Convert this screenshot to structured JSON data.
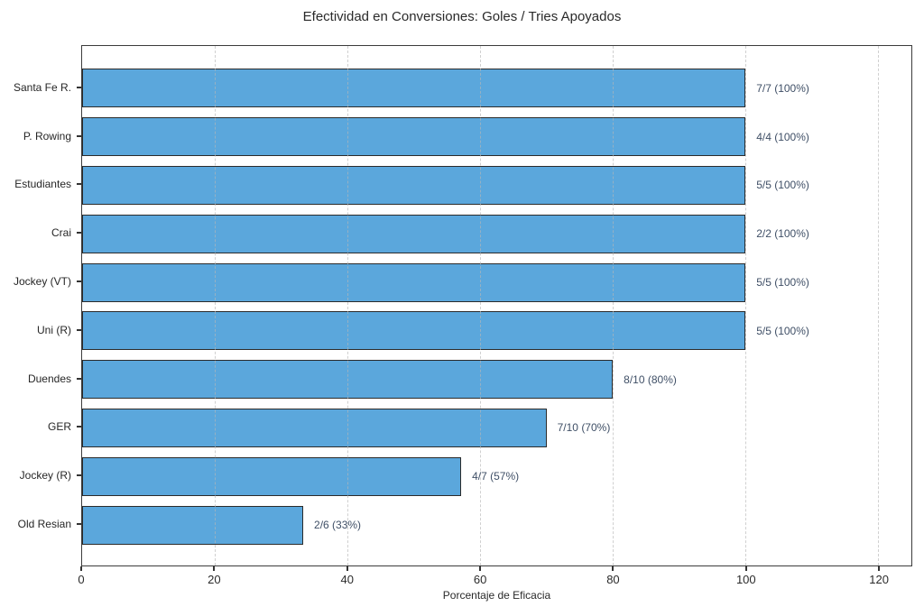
{
  "chart_data": {
    "type": "bar",
    "orientation": "horizontal",
    "title": "Efectividad en Conversiones: Goles / Tries Apoyados",
    "xlabel": "Porcentaje de Eficacia",
    "ylabel": "",
    "categories": [
      "Santa Fe R.",
      "P. Rowing",
      "Estudiantes",
      "Crai",
      "Jockey (VT)",
      "Uni (R)",
      "Duendes",
      "GER",
      "Jockey (R)",
      "Old Resian"
    ],
    "values": [
      100,
      100,
      100,
      100,
      100,
      100,
      80,
      70,
      57.14,
      33.33
    ],
    "bar_labels": [
      "7/7 (100%)",
      "4/4 (100%)",
      "5/5 (100%)",
      "2/2 (100%)",
      "5/5 (100%)",
      "5/5 (100%)",
      "8/10 (80%)",
      "7/10 (70%)",
      "4/7 (57%)",
      "2/6 (33%)"
    ],
    "goles": [
      7,
      4,
      5,
      2,
      5,
      5,
      8,
      7,
      4,
      2
    ],
    "tries_apoyados": [
      7,
      4,
      5,
      2,
      5,
      5,
      10,
      10,
      7,
      6
    ],
    "xlim": [
      0,
      125
    ],
    "xticks": [
      0,
      20,
      40,
      60,
      80,
      100,
      120
    ],
    "grid": "vertical-dashed",
    "legend": "none",
    "bar_color": "#5BA7DC",
    "bar_edge_color": "#2b2b2b",
    "value_label_color": "#3f4f66"
  }
}
